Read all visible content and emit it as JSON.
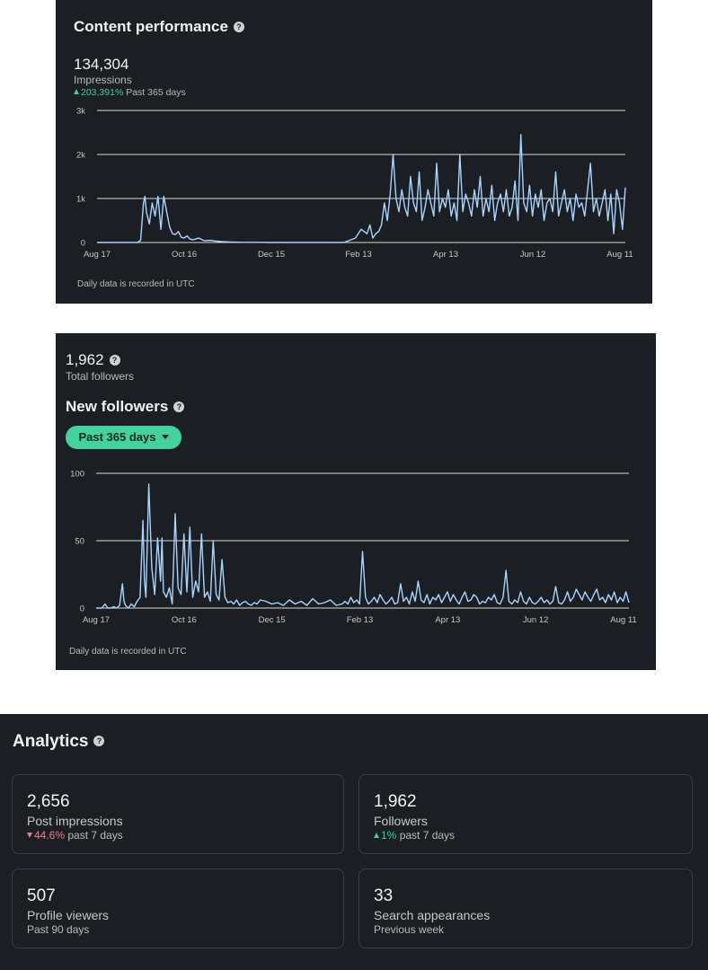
{
  "content_performance": {
    "title": "Content performance",
    "total": "134,304",
    "total_label": "Impressions",
    "change": "203,391%",
    "change_period": "Past 365 days",
    "footnote": "Daily data is recorded in UTC",
    "chart_data": {
      "type": "line",
      "x_tick_labels": [
        "Aug 17",
        "Oct 16",
        "Dec 15",
        "Feb 13",
        "Apr 13",
        "Jun 12",
        "Aug 11"
      ],
      "y_tick_labels": [
        "0",
        "1k",
        "2k",
        "3k"
      ],
      "ylim": [
        0,
        3000
      ],
      "grid": true,
      "series": [
        {
          "color": "#a8d4ff",
          "x": [
            0,
            8,
            16,
            24,
            28,
            30,
            32,
            33,
            34,
            36,
            38,
            40,
            42,
            44,
            46,
            48,
            50,
            52,
            54,
            56,
            58,
            60,
            62,
            64,
            66,
            70,
            74,
            78,
            82,
            86,
            92,
            100,
            110,
            120,
            130,
            140,
            150,
            160,
            170,
            178,
            182,
            186,
            188,
            190,
            192,
            194,
            196,
            198,
            200,
            202,
            204,
            206,
            208,
            210,
            212,
            214,
            216,
            218,
            220,
            222,
            224,
            226,
            228,
            230,
            232,
            234,
            236,
            238,
            240,
            242,
            244,
            246,
            248,
            250,
            252,
            254,
            256,
            258,
            260,
            262,
            264,
            266,
            268,
            270,
            272,
            274,
            276,
            278,
            280,
            282,
            284,
            286,
            288,
            290,
            292,
            294,
            296,
            298,
            300,
            302,
            304,
            306,
            308,
            310,
            312,
            314,
            316,
            318,
            320,
            322,
            324,
            326,
            328,
            330,
            332,
            334,
            336,
            338,
            340,
            342,
            344,
            346,
            348,
            350,
            352,
            354,
            356,
            358,
            360,
            362,
            364
          ],
          "values": [
            0,
            0,
            0,
            0,
            0,
            50,
            900,
            1050,
            700,
            420,
            900,
            600,
            1050,
            300,
            1050,
            700,
            350,
            200,
            180,
            250,
            120,
            100,
            150,
            80,
            60,
            100,
            40,
            50,
            30,
            20,
            10,
            5,
            5,
            0,
            0,
            0,
            0,
            0,
            0,
            100,
            300,
            200,
            400,
            100,
            200,
            250,
            400,
            900,
            500,
            1100,
            2000,
            1000,
            700,
            1200,
            800,
            600,
            1500,
            900,
            700,
            1600,
            500,
            800,
            1200,
            900,
            600,
            1800,
            700,
            1000,
            800,
            1200,
            600,
            900,
            500,
            2000,
            700,
            1100,
            900,
            600,
            1200,
            800,
            1500,
            600,
            1000,
            700,
            1300,
            500,
            900,
            1100,
            700,
            1200,
            600,
            800,
            1400,
            500,
            2450,
            900,
            700,
            1300,
            600,
            1100,
            800,
            1200,
            500,
            900,
            1000,
            700,
            1600,
            600,
            900,
            1200,
            700,
            1000,
            500,
            1100,
            800,
            900,
            600,
            1200,
            1800,
            700,
            1000,
            600,
            900,
            1200,
            500,
            1100,
            200,
            1200,
            900,
            300,
            1250
          ]
        }
      ]
    }
  },
  "followers": {
    "total": "1,962",
    "total_label": "Total followers",
    "title": "New followers",
    "range_label": "Past 365 days",
    "footnote": "Daily data is recorded in UTC",
    "chart_data": {
      "type": "line",
      "x_tick_labels": [
        "Aug 17",
        "Oct 16",
        "Dec 15",
        "Feb 13",
        "Apr 13",
        "Jun 12",
        "Aug 11"
      ],
      "y_tick_labels": [
        "0",
        "50",
        "100"
      ],
      "ylim": [
        0,
        100
      ],
      "grid": true,
      "series": [
        {
          "color": "#a8d4ff",
          "x": [
            0,
            4,
            6,
            8,
            10,
            12,
            14,
            16,
            18,
            19,
            20,
            22,
            24,
            26,
            28,
            30,
            32,
            33,
            34,
            36,
            38,
            40,
            42,
            44,
            45,
            46,
            48,
            50,
            52,
            54,
            56,
            58,
            60,
            62,
            64,
            66,
            68,
            70,
            72,
            74,
            76,
            78,
            80,
            82,
            84,
            86,
            88,
            90,
            92,
            94,
            96,
            98,
            100,
            102,
            104,
            106,
            108,
            110,
            112,
            116,
            120,
            124,
            128,
            132,
            136,
            140,
            144,
            148,
            152,
            156,
            160,
            164,
            168,
            170,
            172,
            174,
            176,
            178,
            180,
            182,
            184,
            186,
            188,
            190,
            192,
            194,
            196,
            198,
            200,
            202,
            204,
            206,
            208,
            210,
            212,
            214,
            216,
            218,
            220,
            222,
            224,
            226,
            228,
            230,
            232,
            234,
            236,
            238,
            240,
            242,
            244,
            246,
            248,
            250,
            252,
            254,
            256,
            258,
            260,
            262,
            264,
            266,
            268,
            270,
            272,
            274,
            276,
            278,
            280,
            282,
            284,
            286,
            288,
            290,
            292,
            294,
            296,
            298,
            300,
            302,
            304,
            306,
            308,
            310,
            312,
            314,
            316,
            318,
            320,
            322,
            324,
            326,
            328,
            330,
            332,
            334,
            336,
            338,
            340,
            342,
            344,
            346,
            348,
            350,
            352,
            354,
            356,
            358,
            360,
            362,
            364
          ],
          "values": [
            0,
            0,
            3,
            0,
            0,
            1,
            0,
            2,
            18,
            5,
            2,
            0,
            3,
            1,
            5,
            8,
            65,
            20,
            8,
            92,
            30,
            10,
            52,
            20,
            52,
            12,
            8,
            15,
            3,
            70,
            15,
            10,
            55,
            12,
            60,
            8,
            20,
            12,
            55,
            8,
            12,
            5,
            50,
            10,
            6,
            36,
            8,
            4,
            5,
            3,
            6,
            2,
            4,
            5,
            3,
            2,
            4,
            3,
            6,
            5,
            3,
            4,
            2,
            6,
            3,
            5,
            2,
            7,
            3,
            4,
            6,
            2,
            3,
            5,
            3,
            8,
            4,
            6,
            3,
            42,
            8,
            3,
            5,
            8,
            4,
            10,
            6,
            3,
            5,
            8,
            3,
            4,
            18,
            5,
            8,
            3,
            12,
            5,
            20,
            6,
            4,
            10,
            3,
            8,
            6,
            10,
            4,
            8,
            12,
            5,
            10,
            6,
            3,
            8,
            12,
            5,
            6,
            10,
            8,
            3,
            5,
            4,
            8,
            6,
            10,
            4,
            3,
            8,
            28,
            5,
            3,
            6,
            4,
            12,
            5,
            3,
            8,
            4,
            3,
            5,
            8,
            4,
            6,
            3,
            5,
            16,
            4,
            3,
            6,
            12,
            5,
            8,
            14,
            10,
            6,
            12,
            8,
            5,
            10,
            14,
            6,
            8,
            4,
            10,
            6,
            12,
            4,
            8,
            5,
            12,
            4
          ]
        }
      ]
    }
  },
  "analytics": {
    "title": "Analytics",
    "cards": [
      {
        "value": "2,656",
        "label": "Post impressions",
        "change": "44.6%",
        "direction": "down",
        "period": "past 7 days"
      },
      {
        "value": "1,962",
        "label": "Followers",
        "change": "1%",
        "direction": "up",
        "period": "past 7 days"
      },
      {
        "value": "507",
        "label": "Profile viewers",
        "period": "Past 90 days"
      },
      {
        "value": "33",
        "label": "Search appearances",
        "period": "Previous week"
      }
    ]
  },
  "colors": {
    "panel_bg": "#1b1f23",
    "line": "#a8d4ff",
    "accent_green": "#43d19e",
    "up": "#3ecf9a",
    "down": "#f27a8c"
  },
  "icons": [
    "help-icon",
    "caret-down-icon",
    "triangle-up-icon",
    "triangle-down-icon"
  ]
}
